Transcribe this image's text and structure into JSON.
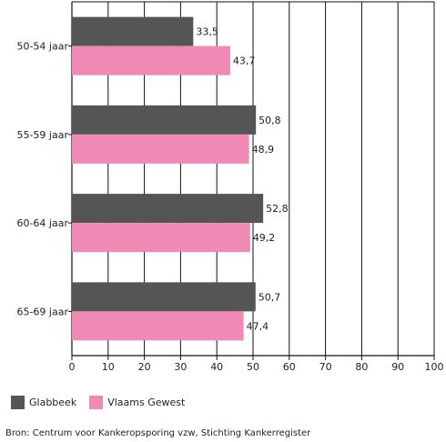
{
  "chart_data": {
    "type": "bar",
    "orientation": "horizontal",
    "categories": [
      "50-54 jaar",
      "55-59 jaar",
      "60-64 jaar",
      "65-69 jaar"
    ],
    "series": [
      {
        "name": "Glabbeek",
        "values": [
          33.5,
          50.8,
          52.8,
          50.7
        ],
        "color": "#555555",
        "labels": [
          "33,5",
          "50,8",
          "52,8",
          "50,7"
        ]
      },
      {
        "name": "Vlaams Gewest",
        "values": [
          43.7,
          48.9,
          49.2,
          47.4
        ],
        "color": "#f08ab5",
        "labels": [
          "43,7",
          "48,9",
          "49,2",
          "47,4"
        ]
      }
    ],
    "xlim": [
      0,
      100
    ],
    "xticks": [
      0,
      10,
      20,
      30,
      40,
      50,
      60,
      70,
      80,
      90,
      100
    ],
    "grid": true,
    "legend_position": "bottom-left"
  },
  "source": "Bron: Centrum voor Kankeropsporing vzw, Stichting Kankerregister"
}
